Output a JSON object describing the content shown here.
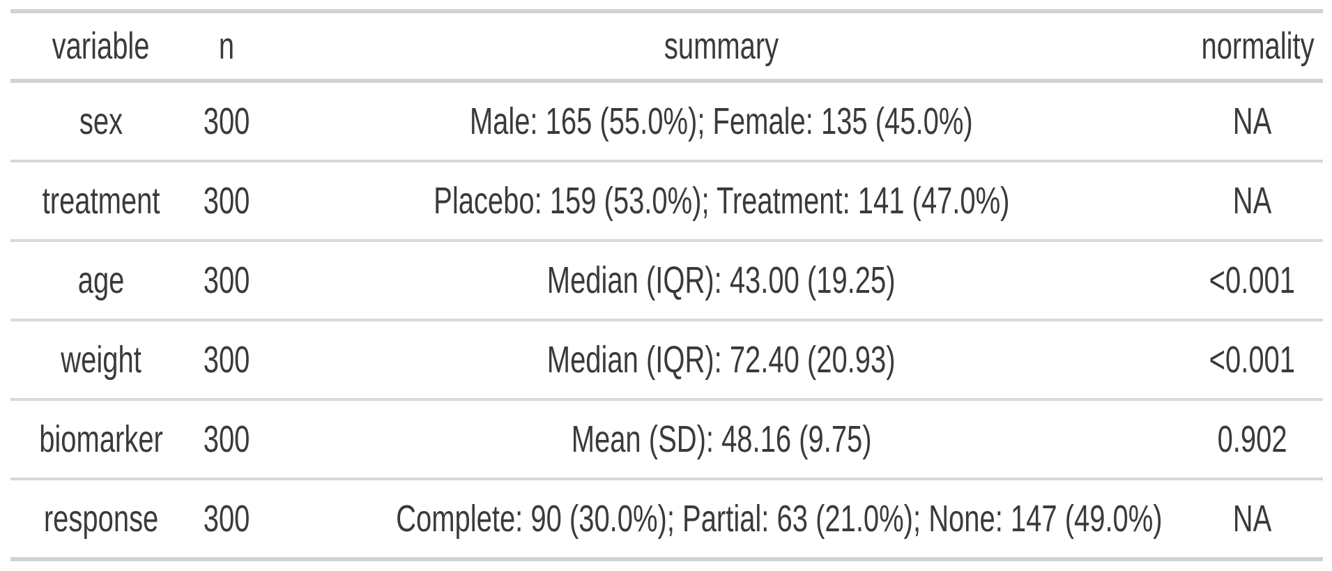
{
  "chart_data": {
    "type": "table",
    "title": "",
    "columns": [
      "variable",
      "n",
      "summary",
      "normality"
    ],
    "rows": [
      [
        "sex",
        "300",
        "Male: 165 (55.0%); Female: 135 (45.0%)",
        "NA"
      ],
      [
        "treatment",
        "300",
        "Placebo: 159 (53.0%); Treatment: 141 (47.0%)",
        "NA"
      ],
      [
        "age",
        "300",
        "Median (IQR): 43.00 (19.25)",
        "<0.001"
      ],
      [
        "weight",
        "300",
        "Median (IQR): 72.40 (20.93)",
        "<0.001"
      ],
      [
        "biomarker",
        "300",
        "Mean (SD): 48.16 (9.75)",
        "0.902"
      ],
      [
        "response",
        "300",
        "Complete: 90 (30.0%); Partial: 63 (21.0%); None: 147 (49.0%)",
        "NA"
      ]
    ],
    "layout": {
      "alignment": "center",
      "grid": "horizontal-rules-only"
    }
  },
  "colors": {
    "background": "#ffffff",
    "text": "#3a3a3a",
    "border_thick": "#d2d2d2",
    "border_row": "#d8d8d8"
  }
}
